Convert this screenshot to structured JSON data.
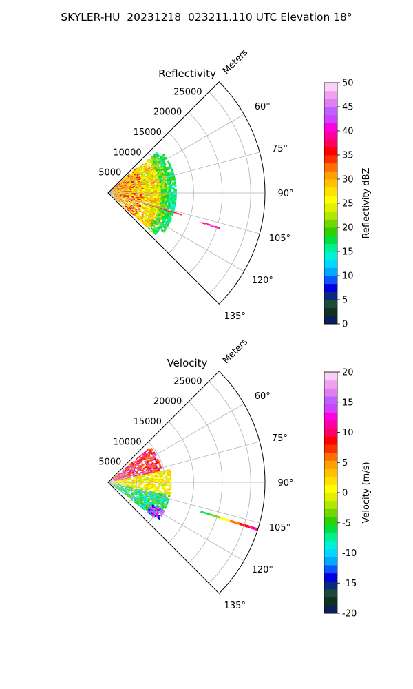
{
  "figure": {
    "title": "SKYLER-HU  20231218  023211.110 UTC Elevation 18°"
  },
  "chart_data": [
    {
      "type": "heatmap",
      "title": "Reflectivity",
      "projection": "polar sector",
      "range_label": "Meters",
      "range_ticks": [
        5000,
        10000,
        15000,
        20000,
        25000
      ],
      "range_max": 27500,
      "azimuth_range_deg": [
        45,
        135
      ],
      "azimuth_ticks_deg": [
        60,
        75,
        90,
        105,
        120,
        135
      ],
      "azimuth_tick_labels": [
        "60°",
        "75°",
        "90°",
        "105°",
        "120°",
        "135°"
      ],
      "grid": true,
      "colorbar": {
        "label": "Reflectivity dBZ",
        "min": 0,
        "max": 50,
        "ticks": [
          0,
          5,
          10,
          15,
          20,
          25,
          30,
          35,
          40,
          45,
          50
        ],
        "colors": [
          "#0a1f5c",
          "#103020",
          "#1a4a3a",
          "#0a2a80",
          "#0000e0",
          "#0a55ff",
          "#00a8ff",
          "#00d8ff",
          "#00f0d8",
          "#00f090",
          "#00e040",
          "#30d000",
          "#70d800",
          "#b0e800",
          "#e0f000",
          "#ffff00",
          "#ffe000",
          "#ffc000",
          "#ffa000",
          "#ff7000",
          "#ff3000",
          "#ff0000",
          "#ff0060",
          "#ff00a0",
          "#ff00e0",
          "#d040ff",
          "#c060ff",
          "#e080f0",
          "#f0a0f0",
          "#f8d0f8"
        ]
      },
      "returns": [
        {
          "az_deg": [
            48,
            102
          ],
          "range_m": [
            0,
            7000
          ],
          "band": "orange-red core"
        },
        {
          "az_deg": [
            50,
            130
          ],
          "range_m": [
            1000,
            11000
          ],
          "band": "yellow-green"
        },
        {
          "az_deg": [
            55,
            125
          ],
          "range_m": [
            7500,
            12000
          ],
          "band": "green-cyan edge"
        },
        {
          "az_deg": [
            106,
            107
          ],
          "range_m": [
            3000,
            13500
          ],
          "band": "red ray"
        },
        {
          "az_deg": [
            107,
            108
          ],
          "range_m": [
            17000,
            20500
          ],
          "band": "magenta ray"
        }
      ]
    },
    {
      "type": "heatmap",
      "title": "Velocity",
      "projection": "polar sector",
      "range_label": "Meters",
      "range_ticks": [
        5000,
        10000,
        15000,
        20000,
        25000
      ],
      "range_max": 27500,
      "azimuth_range_deg": [
        45,
        135
      ],
      "azimuth_ticks_deg": [
        60,
        75,
        90,
        105,
        120,
        135
      ],
      "azimuth_tick_labels": [
        "60°",
        "75°",
        "90°",
        "105°",
        "120°",
        "135°"
      ],
      "grid": true,
      "colorbar": {
        "label": "Velocity (m/s)",
        "min": -20,
        "max": 20,
        "ticks": [
          -20,
          -15,
          -10,
          -5,
          0,
          5,
          10,
          15,
          20
        ],
        "colors": [
          "#0a1f5c",
          "#103020",
          "#1a4a3a",
          "#0a2a80",
          "#0000e0",
          "#0a55ff",
          "#00a8ff",
          "#00d8ff",
          "#00f0d8",
          "#00f090",
          "#00e040",
          "#30d000",
          "#70d800",
          "#b0e800",
          "#e0f000",
          "#ffff00",
          "#ffe000",
          "#ffc000",
          "#ffa000",
          "#ff7000",
          "#ff3000",
          "#ff0000",
          "#ff0060",
          "#ff00a0",
          "#ff00e0",
          "#d040ff",
          "#c060ff",
          "#e080f0",
          "#f0a0f0",
          "#f8d0f8"
        ]
      },
      "returns": [
        {
          "az_deg": [
            50,
            78
          ],
          "range_m": [
            1000,
            9500
          ],
          "band": "red-magenta outbound"
        },
        {
          "az_deg": [
            78,
            102
          ],
          "range_m": [
            1000,
            11000
          ],
          "band": "yellow near zero"
        },
        {
          "az_deg": [
            102,
            125
          ],
          "range_m": [
            1000,
            11000
          ],
          "band": "green-cyan inbound"
        },
        {
          "az_deg": [
            118,
            126
          ],
          "range_m": [
            5000,
            10000
          ],
          "band": "blue-magenta edge"
        },
        {
          "az_deg": [
            107,
            108
          ],
          "range_m": [
            17000,
            27500
          ],
          "band": "green-red ray"
        }
      ]
    }
  ]
}
